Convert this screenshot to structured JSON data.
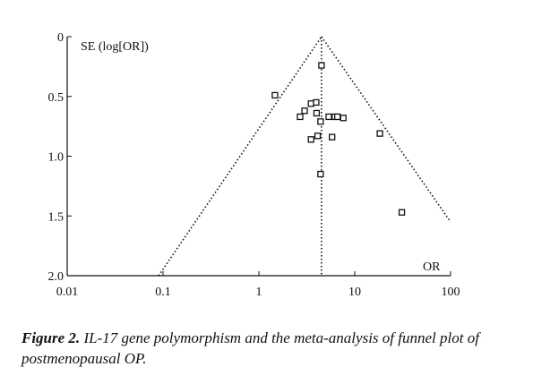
{
  "chart_data": {
    "type": "scatter",
    "y_label": "SE (log[OR])",
    "x_label": "OR",
    "x_scale": "log",
    "y_reversed": true,
    "xlim": [
      0.01,
      100
    ],
    "xticks": [
      0.01,
      0.1,
      1,
      10,
      100
    ],
    "ylim": [
      0,
      2
    ],
    "yticks": [
      0,
      0.5,
      {
        "value": 1,
        "label": "1.0"
      },
      1.5,
      {
        "value": 2,
        "label": "2.0"
      }
    ],
    "marker_color": "#111111",
    "x": [
      4.5,
      1.47,
      3.5,
      3.96,
      3.0,
      2.69,
      4.0,
      4.4,
      5.36,
      6.2,
      6.6,
      7.6,
      4.1,
      3.5,
      5.8,
      18.3,
      4.4,
      31
    ],
    "values": [
      0.24,
      0.49,
      0.56,
      0.55,
      0.62,
      0.67,
      0.64,
      0.71,
      0.67,
      0.67,
      0.67,
      0.68,
      0.83,
      0.86,
      0.84,
      0.81,
      1.15,
      1.47
    ],
    "reference_lines": [
      {
        "x": [
          0.09,
          4.5
        ],
        "y": [
          2,
          0
        ]
      },
      {
        "x": [
          4.5,
          100
        ],
        "y": [
          0,
          1.55
        ]
      },
      {
        "x": [
          4.5,
          4.5
        ],
        "y": [
          0,
          2
        ]
      }
    ]
  },
  "caption": {
    "label": "Figure 2.",
    "text": "IL-17 gene polymorphism and the meta-analysis of funnel plot of postmenopausal OP."
  }
}
